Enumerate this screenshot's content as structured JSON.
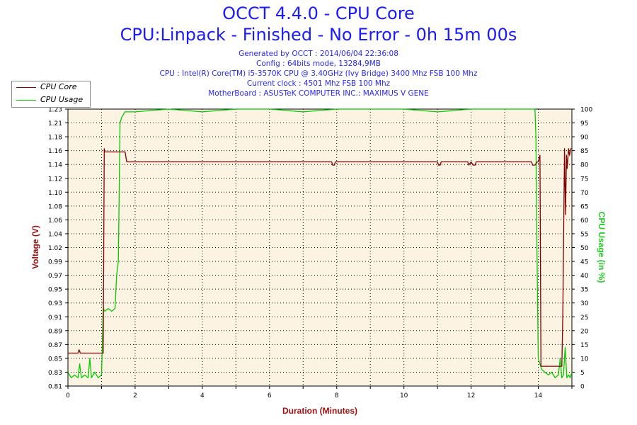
{
  "chart_data": {
    "type": "line",
    "title": "OCCT 4.4.0 - CPU Core",
    "subtitle": "CPU:Linpack - Finished - No Error - 0h 15m 00s",
    "info_lines": [
      "Generated by OCCT : 2014/06/04 22:36:08",
      "Config : 64bits mode, 13284,9MB",
      "CPU : Intel(R) Core(TM) i5-3570K CPU @ 3.40GHz (Ivy Bridge) 3400 Mhz FSB 100 Mhz",
      "Current clock : 4501 Mhz FSB 100 Mhz",
      "MotherBoard : ASUSTeK COMPUTER INC.: MAXIMUS V GENE"
    ],
    "xlabel": "Duration (Minutes)",
    "ylabel": "Voltage (V)",
    "y2label": "CPU Usage (in %)",
    "xlim": [
      0,
      15
    ],
    "ylim": [
      0.81,
      1.23
    ],
    "y2lim": [
      0,
      100
    ],
    "x_ticks": [
      "0",
      "2",
      "4",
      "6",
      "8",
      "10",
      "12",
      "14"
    ],
    "y_ticks": [
      "0.81",
      "0.83",
      "0.85",
      "0.87",
      "0.89",
      "0.91",
      "0.93",
      "0.95",
      "0.97",
      "0.99",
      "1.02",
      "1.04",
      "1.06",
      "1.08",
      "1.10",
      "1.12",
      "1.14",
      "1.16",
      "1.18",
      "1.21",
      "1.23"
    ],
    "y2_ticks": [
      "0",
      "5",
      "10",
      "15",
      "20",
      "25",
      "30",
      "35",
      "40",
      "45",
      "50",
      "55",
      "60",
      "65",
      "70",
      "75",
      "80",
      "85",
      "90",
      "95",
      "100"
    ],
    "grid": true,
    "legend": "top-left",
    "series": [
      {
        "name": "CPU Core",
        "axis": "left",
        "color": "#800000",
        "x": [
          0,
          0.3,
          0.33,
          0.37,
          1.05,
          1.08,
          1.09,
          1.7,
          1.75,
          1.8,
          7.85,
          7.88,
          7.93,
          7.96,
          11.0,
          11.03,
          11.08,
          11.11,
          11.9,
          11.93,
          12.0,
          12.06,
          12.12,
          12.15,
          13.8,
          13.83,
          13.9,
          13.97,
          14.0,
          14.05,
          14.08,
          14.6,
          14.65,
          14.7,
          14.73,
          14.78,
          14.81,
          14.84,
          14.86,
          14.9,
          14.93,
          14.97,
          15.0
        ],
        "y": [
          0.86,
          0.86,
          0.865,
          0.86,
          0.86,
          1.17,
          1.165,
          1.165,
          1.15,
          1.15,
          1.15,
          1.145,
          1.145,
          1.15,
          1.15,
          1.145,
          1.145,
          1.15,
          1.15,
          1.145,
          1.15,
          1.145,
          1.145,
          1.15,
          1.15,
          1.145,
          1.145,
          1.15,
          1.15,
          1.16,
          0.84,
          0.84,
          0.84,
          0.84,
          0.92,
          1.17,
          1.07,
          1.16,
          1.14,
          1.17,
          1.16,
          1.17,
          1.17
        ]
      },
      {
        "name": "CPU Usage",
        "axis": "right",
        "color": "#00cc00",
        "x": [
          0,
          0.1,
          0.2,
          0.3,
          0.35,
          0.4,
          0.5,
          0.6,
          0.65,
          0.7,
          0.8,
          0.9,
          1.0,
          1.05,
          1.1,
          1.2,
          1.3,
          1.4,
          1.45,
          1.5,
          1.55,
          1.6,
          1.7,
          2.0,
          3.0,
          4.0,
          5.0,
          6.0,
          7.0,
          8.0,
          9.0,
          10.0,
          11.0,
          12.0,
          13.0,
          13.9,
          13.93,
          13.96,
          14.0,
          14.1,
          14.2,
          14.3,
          14.4,
          14.5,
          14.6,
          14.65,
          14.7,
          14.75,
          14.8,
          14.85,
          14.9,
          14.95,
          15.0
        ],
        "y": [
          5,
          3,
          4,
          3,
          8,
          3,
          4,
          3,
          10,
          3,
          5,
          3,
          4,
          28,
          27,
          28,
          27,
          28,
          40,
          45,
          95,
          97,
          99,
          99,
          100,
          99,
          100,
          100,
          99,
          100,
          100,
          100,
          99,
          100,
          100,
          100,
          90,
          50,
          10,
          6,
          5,
          4,
          5,
          3,
          4,
          10,
          3,
          4,
          14,
          3,
          4,
          3,
          5
        ]
      }
    ]
  }
}
